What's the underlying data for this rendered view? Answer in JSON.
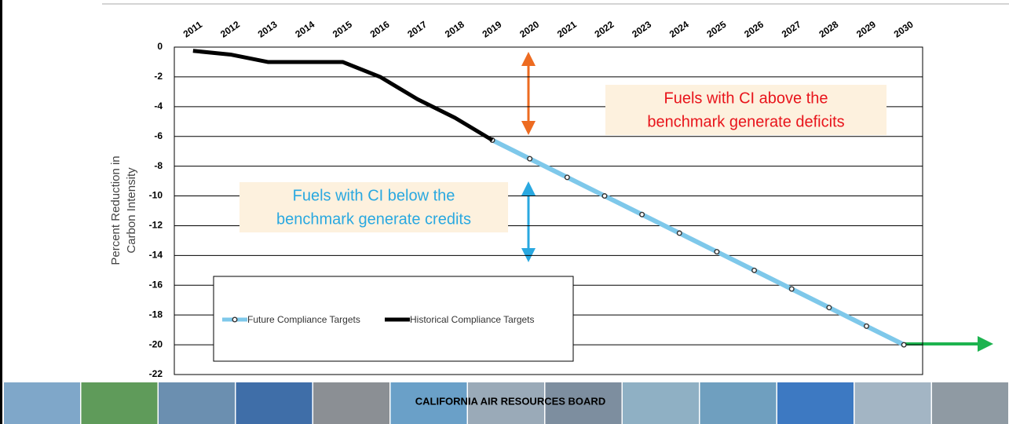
{
  "chart_data": {
    "type": "line",
    "y_label": [
      "Percent Reduction in",
      "Carbon Intensity"
    ],
    "x": [
      2011,
      2012,
      2013,
      2014,
      2015,
      2016,
      2017,
      2018,
      2019,
      2020,
      2021,
      2022,
      2023,
      2024,
      2025,
      2026,
      2027,
      2028,
      2029,
      2030
    ],
    "xlim": [
      2010.5,
      2030.5
    ],
    "ylim": [
      -22,
      0
    ],
    "yticks": [
      0,
      -2,
      -4,
      -6,
      -8,
      -10,
      -12,
      -14,
      -16,
      -18,
      -20,
      -22
    ],
    "grid": true,
    "series": [
      {
        "name": "Future Compliance Targets",
        "color": "#7ec8ea",
        "markers": true,
        "values": [
          null,
          null,
          null,
          null,
          null,
          null,
          null,
          null,
          -6.25,
          -7.5,
          -8.75,
          -10,
          -11.25,
          -12.5,
          -13.75,
          -15,
          -16.25,
          -17.5,
          -18.75,
          -20
        ]
      },
      {
        "name": "Historical Compliance Targets",
        "color": "#000000",
        "markers": false,
        "values": [
          -0.25,
          -0.5,
          -1,
          -1,
          -1,
          -2,
          -3.5,
          -4.75,
          -6.25,
          null,
          null,
          null,
          null,
          null,
          null,
          null,
          null,
          null,
          null,
          null
        ]
      }
    ],
    "annotations": [
      {
        "lines": [
          "Fuels with CI above the",
          "benchmark generate deficits"
        ],
        "color": "#e8141b"
      },
      {
        "lines": [
          "Fuels with CI below the",
          "benchmark generate credits"
        ],
        "color": "#29a8e0"
      }
    ],
    "footer": "CALIFORNIA AIR RESOURCES BOARD"
  }
}
